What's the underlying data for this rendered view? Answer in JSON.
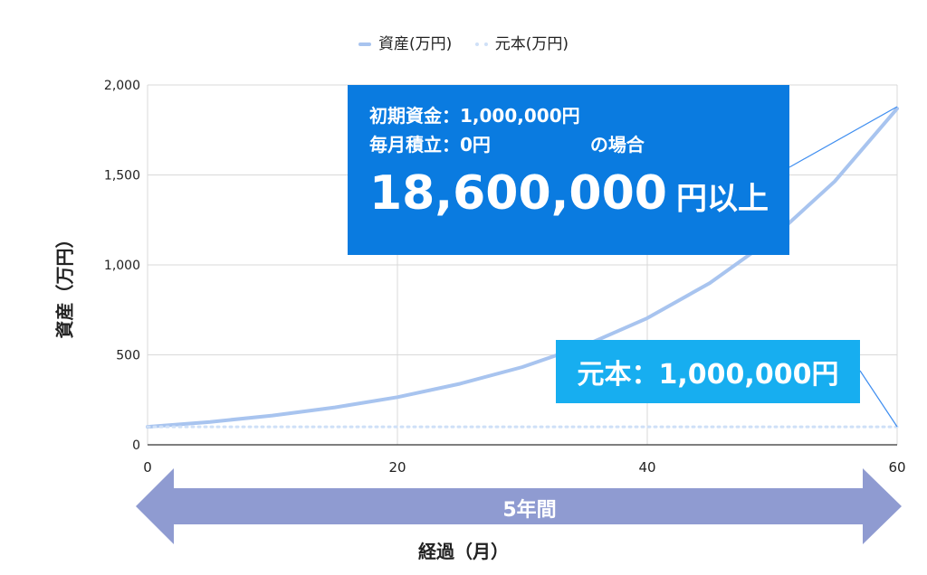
{
  "chart_data": {
    "type": "line",
    "legend": {
      "position": "top-center"
    },
    "xlabel": "経過（月）",
    "ylabel": "資産（万円）",
    "xlim": [
      0,
      60
    ],
    "ylim": [
      0,
      2000
    ],
    "x_ticks": [
      "0",
      "20",
      "40",
      "60"
    ],
    "x_tick_values": [
      0,
      20,
      40,
      60
    ],
    "y_ticks": [
      "0",
      "500",
      "1,000",
      "1,500",
      "2,000"
    ],
    "y_tick_values": [
      0,
      500,
      1000,
      1500,
      2000
    ],
    "grid": true,
    "series": [
      {
        "name": "資産(万円)",
        "style": "solid",
        "color": "#a8c4ef",
        "x": [
          0,
          5,
          10,
          15,
          20,
          25,
          30,
          35,
          40,
          45,
          50,
          55,
          60
        ],
        "values": [
          100,
          127,
          163,
          208,
          265,
          339,
          432,
          552,
          704,
          899,
          1147,
          1464,
          1869
        ]
      },
      {
        "name": "元本(万円)",
        "style": "dotted",
        "color": "#cfe0f7",
        "x": [
          0,
          60
        ],
        "values": [
          100,
          100
        ]
      }
    ],
    "annotations": {
      "main_line1": "初期資金：1,000,000円",
      "main_line2a": "毎月積立：0円",
      "main_line2b": "の場合",
      "main_big": "18,600,000",
      "main_big_unit": "円以上",
      "principal": "元本：1,000,000円"
    },
    "period_label": "5年間",
    "colors": {
      "main_box": "#0a7be0",
      "sub_box": "#17aef0",
      "arrow": "#8f9bd1",
      "grid": "#d9d9d9"
    }
  }
}
